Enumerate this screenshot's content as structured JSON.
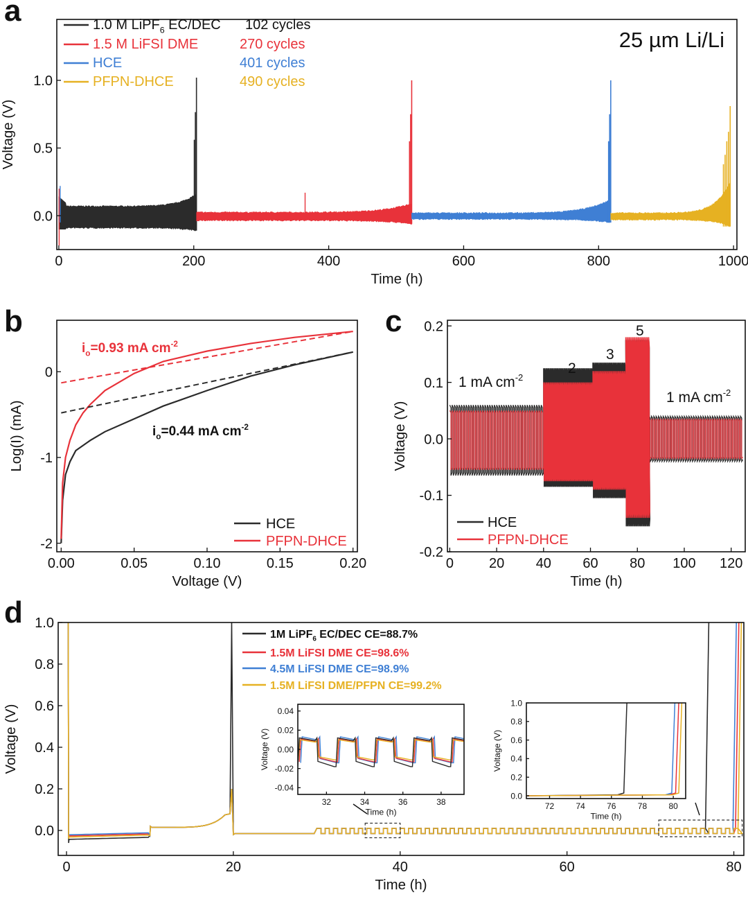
{
  "chart_data": [
    {
      "panel": "a",
      "type": "line",
      "title": "25 µm Li/Li",
      "xlabel": "Time (h)",
      "ylabel": "Voltage (V)",
      "xlim": [
        -3,
        1005
      ],
      "ylim": [
        -0.25,
        1.45
      ],
      "xticks": [
        "0",
        "200",
        "400",
        "600",
        "800",
        "1000"
      ],
      "yticks": [
        "0.0",
        "0.5",
        "1.0"
      ],
      "legend": [
        {
          "label": "1.0 M LiPF",
          "sub": "6",
          "label_tail": " EC/DEC",
          "note": "102 cycles",
          "color": "#2b2b2b"
        },
        {
          "label": "1.5 M LiFSI DME",
          "note": "270 cycles",
          "color": "#e8323a"
        },
        {
          "label": "HCE",
          "note": "401 cycles",
          "color": "#3f7fd4"
        },
        {
          "label": "PFPN-DHCE",
          "note": "490 cycles",
          "color": "#e6b122"
        }
      ],
      "series": [
        {
          "name": "1.0 M LiPF6 EC/DEC",
          "color": "#2b2b2b",
          "t_end": 204,
          "spike": 1.02,
          "band": [
            0.07,
            -0.09
          ],
          "end_band": [
            0.16,
            -0.11
          ]
        },
        {
          "name": "1.5 M LiFSI DME",
          "color": "#e8323a",
          "t_end": 523,
          "spike": 1.0,
          "band": [
            0.025,
            -0.035
          ],
          "end_band": [
            0.09,
            -0.06
          ]
        },
        {
          "name": "HCE",
          "color": "#3f7fd4",
          "t_end": 818,
          "spike": 1.0,
          "band": [
            0.02,
            -0.025
          ],
          "end_band": [
            0.12,
            -0.05
          ]
        },
        {
          "name": "PFPN-DHCE",
          "color": "#e6b122",
          "t_end": 995,
          "spike": 0.81,
          "band": [
            0.02,
            -0.03
          ],
          "end_band": [
            0.25,
            -0.08
          ]
        }
      ]
    },
    {
      "panel": "b",
      "type": "line",
      "xlabel": "Voltage (V)",
      "ylabel": "Log(I) (mA)",
      "xlim": [
        0,
        0.2
      ],
      "ylim": [
        -2.1,
        0.6
      ],
      "xticks": [
        "0.00",
        "0.05",
        "0.10",
        "0.15",
        "0.20"
      ],
      "yticks": [
        "-2",
        "-1",
        "0"
      ],
      "annotations": [
        {
          "text_main": "i",
          "sub": "o",
          "text_rest": "=0.93 mA cm",
          "sup": "-2",
          "color": "#e8323a"
        },
        {
          "text_main": "i",
          "sub": "o",
          "text_rest": "=0.44 mA cm",
          "sup": "-2",
          "color": "#111111"
        }
      ],
      "legend": [
        {
          "label": "HCE",
          "color": "#2b2b2b"
        },
        {
          "label": "PFPN-DHCE",
          "color": "#e8323a"
        }
      ],
      "series": [
        {
          "name": "HCE",
          "color": "#2b2b2b",
          "x": [
            0,
            0.001,
            0.003,
            0.006,
            0.01,
            0.02,
            0.03,
            0.05,
            0.07,
            0.1,
            0.13,
            0.16,
            0.2
          ],
          "y": [
            -2.0,
            -1.5,
            -1.2,
            -1.05,
            -0.92,
            -0.8,
            -0.7,
            -0.55,
            -0.4,
            -0.22,
            -0.05,
            0.08,
            0.23
          ]
        },
        {
          "name": "PFPN-DHCE",
          "color": "#e8323a",
          "x": [
            0,
            0.001,
            0.003,
            0.006,
            0.01,
            0.015,
            0.02,
            0.03,
            0.05,
            0.07,
            0.1,
            0.13,
            0.16,
            0.2
          ],
          "y": [
            -1.95,
            -1.3,
            -1.0,
            -0.8,
            -0.62,
            -0.48,
            -0.38,
            -0.22,
            -0.02,
            0.12,
            0.24,
            0.33,
            0.4,
            0.47
          ]
        },
        {
          "name": "HCE fit",
          "color": "#2b2b2b",
          "dashed": true,
          "x": [
            0,
            0.2
          ],
          "y": [
            -0.48,
            0.23
          ]
        },
        {
          "name": "PFPN-DHCE fit",
          "color": "#e8323a",
          "dashed": true,
          "x": [
            0,
            0.2
          ],
          "y": [
            -0.13,
            0.47
          ]
        }
      ]
    },
    {
      "panel": "c",
      "type": "line",
      "xlabel": "Time (h)",
      "ylabel": "Voltage (V)",
      "xlim": [
        -1,
        126
      ],
      "ylim": [
        -0.2,
        0.21
      ],
      "xticks": [
        "0",
        "20",
        "40",
        "60",
        "80",
        "100",
        "120"
      ],
      "yticks": [
        "-0.2",
        "-0.1",
        "0.0",
        "0.1",
        "0.2"
      ],
      "rate_labels": [
        {
          "text": "1 mA cm",
          "sup": "-2"
        },
        {
          "text": "2",
          "sup": ""
        },
        {
          "text": "3",
          "sup": ""
        },
        {
          "text": "5",
          "sup": ""
        },
        {
          "text": "1 mA cm",
          "sup": "-2"
        }
      ],
      "legend": [
        {
          "label": "HCE",
          "color": "#2b2b2b"
        },
        {
          "label": "PFPN-DHCE",
          "color": "#e8323a"
        }
      ],
      "segments": [
        {
          "t0": 0,
          "t1": 40,
          "hce": [
            0.06,
            -0.065
          ],
          "pfpn": [
            0.05,
            -0.055
          ]
        },
        {
          "t0": 40,
          "t1": 61,
          "hce": [
            0.125,
            -0.085
          ],
          "pfpn": [
            0.1,
            -0.075
          ]
        },
        {
          "t0": 61,
          "t1": 75,
          "hce": [
            0.135,
            -0.105
          ],
          "pfpn": [
            0.12,
            -0.09
          ]
        },
        {
          "t0": 75,
          "t1": 85,
          "hce": [
            0.175,
            -0.155
          ],
          "pfpn": [
            0.18,
            -0.14
          ]
        },
        {
          "t0": 85,
          "t1": 125,
          "hce": [
            0.04,
            -0.04
          ],
          "pfpn": [
            0.035,
            -0.035
          ]
        }
      ]
    },
    {
      "panel": "d",
      "type": "line",
      "xlabel": "Time (h)",
      "ylabel": "Voltage (V)",
      "xlim": [
        -0.5,
        81
      ],
      "ylim": [
        -0.12,
        1.0
      ],
      "xticks": [
        "0",
        "20",
        "40",
        "60",
        "80"
      ],
      "yticks": [
        "0.0",
        "0.2",
        "0.4",
        "0.6",
        "0.8",
        "1.0"
      ],
      "legend": [
        {
          "label": "1M LiPF",
          "sub": "6",
          "label_tail": " EC/DEC CE=88.7%",
          "color": "#2b2b2b"
        },
        {
          "label": "1.5M LiFSI DME CE=98.6%",
          "color": "#e8323a"
        },
        {
          "label": "4.5M LiFSI DME CE=98.9%",
          "color": "#3f7fd4"
        },
        {
          "label": "1.5M LiFSI DME/PFPN  CE=99.2%",
          "color": "#e6b122"
        }
      ],
      "series": [
        {
          "name": "1M LiPF6 EC/DEC",
          "color": "#2b2b2b",
          "end": 77.0
        },
        {
          "name": "1.5M LiFSI DME",
          "color": "#e8323a",
          "end": 80.6
        },
        {
          "name": "4.5M LiFSI DME",
          "color": "#3f7fd4",
          "end": 80.3
        },
        {
          "name": "1.5M LiFSI DME/PFPN",
          "color": "#e6b122",
          "end": 80.9
        }
      ],
      "inset1": {
        "ylabel": "Voltage (V)",
        "xlabel": "Time (h)",
        "xlim": [
          30.5,
          39.2
        ],
        "ylim": [
          -0.047,
          0.047
        ],
        "xticks": [
          "32",
          "34",
          "36",
          "38"
        ],
        "yticks": [
          "-0.04",
          "-0.02",
          "0.00",
          "0.02",
          "0.04"
        ]
      },
      "inset2": {
        "ylabel": "Voltage (V)",
        "xlabel": "Time (h)",
        "xlim": [
          70.5,
          80.8
        ],
        "ylim": [
          -0.03,
          1.0
        ],
        "xticks": [
          "72",
          "74",
          "76",
          "78",
          "80"
        ],
        "yticks": [
          "0.0",
          "0.2",
          "0.4",
          "0.6",
          "0.8",
          "1.0"
        ]
      }
    }
  ],
  "panel_labels": [
    "a",
    "b",
    "c",
    "d"
  ]
}
